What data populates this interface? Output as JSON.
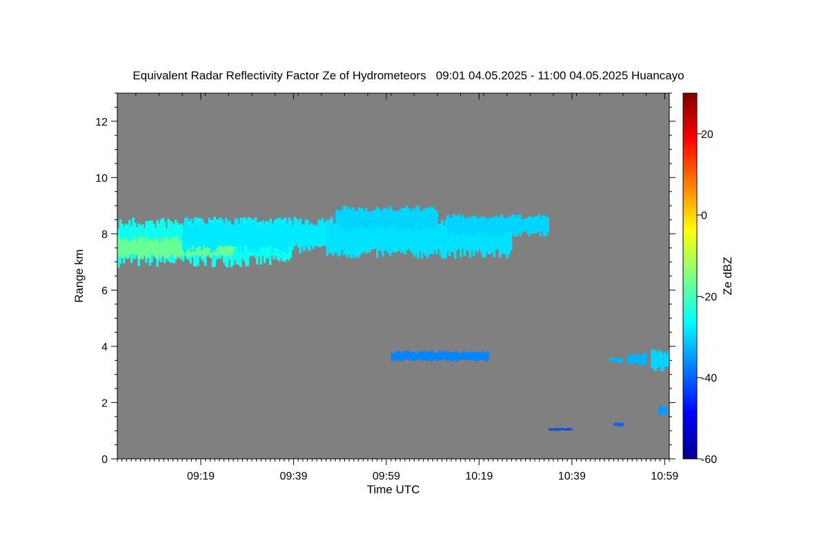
{
  "chart_data": {
    "type": "heatmap",
    "title": "Equivalent Radar Reflectivity Factor Ze of Hydrometeors   09:01 04.05.2025 - 11:00 04.05.2025 Huancayo",
    "xlabel": "Time UTC",
    "ylabel": "Range km",
    "x_tick_labels": [
      "09:19",
      "09:39",
      "09:59",
      "10:19",
      "10:39",
      "10:59"
    ],
    "x_ticks_min": [
      19,
      39,
      59,
      79,
      99,
      119
    ],
    "xlim_min": [
      1,
      120
    ],
    "y_ticks": [
      0,
      2,
      4,
      6,
      8,
      10,
      12
    ],
    "ylim": [
      0,
      13
    ],
    "background_color": "#808080",
    "colorbar": {
      "label": "Ze dBZ",
      "ticks": [
        -60,
        -40,
        -20,
        0,
        20
      ],
      "range": [
        -60,
        30
      ],
      "colormap": "jet"
    },
    "echoes": [
      {
        "name": "upper-cloud-layer",
        "t_start": 1,
        "t_end": 38.5,
        "base_km": 6.8,
        "top_km": 8.6,
        "ze_dbz": -25
      },
      {
        "name": "upper-cloud-core",
        "t_start": 1,
        "t_end": 26,
        "base_km": 7.1,
        "top_km": 7.9,
        "ze_dbz": -17
      },
      {
        "name": "upper-cloud-fragments",
        "t_start": 15,
        "t_end": 51,
        "base_km": 7.3,
        "top_km": 8.6,
        "ze_dbz": -28
      },
      {
        "name": "upper-cloud-trailing",
        "t_start": 46,
        "t_end": 86,
        "base_km": 7.1,
        "top_km": 8.6,
        "ze_dbz": -29
      },
      {
        "name": "streak-upper-1",
        "t_start": 48,
        "t_end": 70,
        "base_km": 8.1,
        "top_km": 9.0,
        "ze_dbz": -30
      },
      {
        "name": "streak-upper-2",
        "t_start": 72,
        "t_end": 94,
        "base_km": 7.9,
        "top_km": 8.7,
        "ze_dbz": -30
      },
      {
        "name": "mid-level-layer",
        "t_start": 60,
        "t_end": 81,
        "base_km": 3.45,
        "top_km": 3.85,
        "ze_dbz": -37
      },
      {
        "name": "low-echo-1",
        "t_start": 94,
        "t_end": 99,
        "base_km": 1.0,
        "top_km": 1.1,
        "ze_dbz": -42
      },
      {
        "name": "low-echo-2",
        "t_start": 108,
        "t_end": 110,
        "base_km": 1.15,
        "top_km": 1.3,
        "ze_dbz": -40
      },
      {
        "name": "low-echo-3",
        "t_start": 117.5,
        "t_end": 119.5,
        "base_km": 1.5,
        "top_km": 1.9,
        "ze_dbz": -35
      },
      {
        "name": "mid-echo-right-1",
        "t_start": 111,
        "t_end": 115,
        "base_km": 3.3,
        "top_km": 3.8,
        "ze_dbz": -33
      },
      {
        "name": "mid-echo-right-2",
        "t_start": 116,
        "t_end": 120,
        "base_km": 3.1,
        "top_km": 3.9,
        "ze_dbz": -30
      },
      {
        "name": "mid-echo-right-3",
        "t_start": 107,
        "t_end": 110,
        "base_km": 3.4,
        "top_km": 3.6,
        "ze_dbz": -33
      }
    ]
  }
}
